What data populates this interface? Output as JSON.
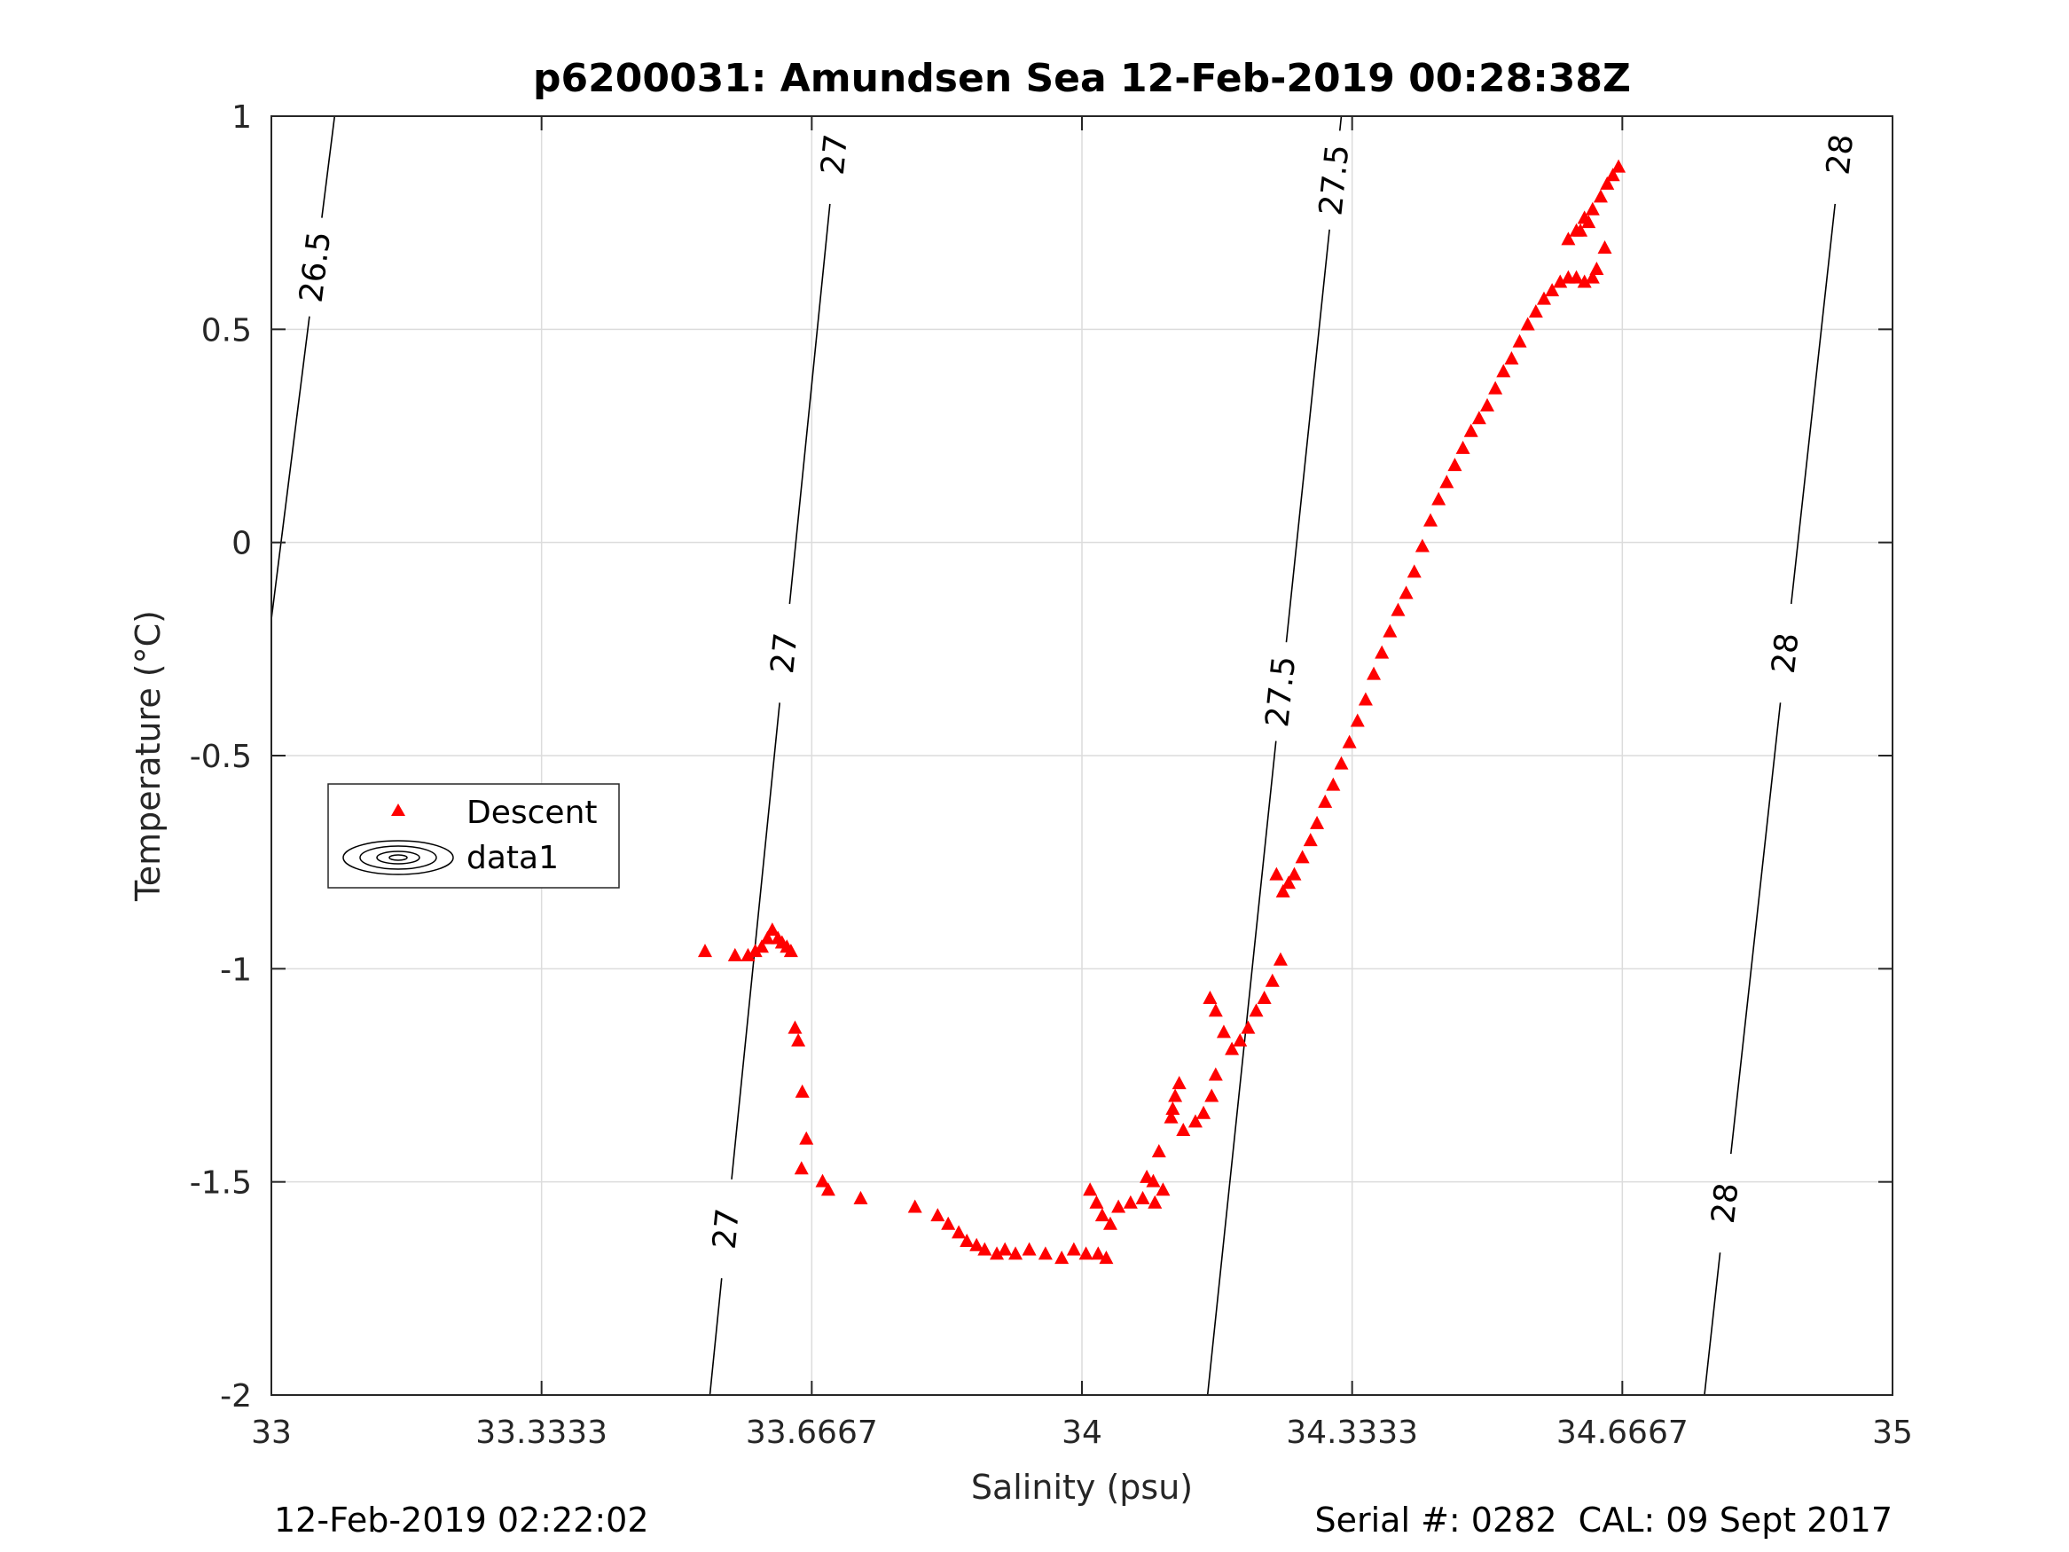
{
  "chart_data": {
    "type": "scatter",
    "title": "p6200031: Amundsen Sea 12-Feb-2019 00:28:38Z",
    "xlabel": "Salinity (psu)",
    "ylabel": "Temperature (°C)",
    "xlim": [
      33,
      35
    ],
    "ylim": [
      -2,
      1
    ],
    "xticks": [
      "33",
      "33.3333",
      "33.6667",
      "34",
      "34.3333",
      "34.6667",
      "35"
    ],
    "yticks": [
      "1",
      "0.5",
      "0",
      "-0.5",
      "-1",
      "-1.5",
      "-2"
    ],
    "grid": true,
    "legend_position": "center-left",
    "legend": [
      "Descent",
      "data1"
    ],
    "marker_color": "#ff0000",
    "series": [
      {
        "name": "Descent",
        "marker": "triangle",
        "x": [
          33.535,
          33.572,
          33.588,
          33.597,
          33.605,
          33.612,
          33.618,
          33.625,
          33.63,
          33.636,
          33.641,
          33.646,
          33.65,
          33.655,
          33.66,
          33.654,
          33.68,
          33.687,
          33.727,
          33.794,
          33.822,
          33.835,
          33.848,
          33.858,
          33.87,
          33.88,
          33.895,
          33.905,
          33.918,
          33.935,
          33.955,
          33.975,
          33.99,
          34.005,
          34.02,
          34.03,
          34.01,
          34.018,
          34.025,
          34.035,
          34.045,
          34.06,
          34.075,
          34.09,
          34.1,
          34.08,
          34.088,
          34.095,
          34.11,
          34.115,
          34.12,
          34.112,
          34.125,
          34.14,
          34.15,
          34.16,
          34.165,
          34.158,
          34.165,
          34.175,
          34.185,
          34.195,
          34.205,
          34.215,
          34.225,
          34.235,
          34.245,
          34.24,
          34.248,
          34.255,
          34.262,
          34.272,
          34.282,
          34.29,
          34.3,
          34.31,
          34.32,
          34.33,
          34.34,
          34.35,
          34.36,
          34.37,
          34.38,
          34.39,
          34.4,
          34.41,
          34.42,
          34.43,
          34.44,
          34.45,
          34.46,
          34.47,
          34.48,
          34.49,
          34.5,
          34.51,
          34.52,
          34.53,
          34.54,
          34.55,
          34.56,
          34.57,
          34.58,
          34.59,
          34.6,
          34.61,
          34.62,
          34.63,
          34.635,
          34.645,
          34.6,
          34.615,
          34.625,
          34.61,
          34.62,
          34.63,
          34.64,
          34.648,
          34.655,
          34.662
        ],
        "y": [
          -0.96,
          -0.97,
          -0.97,
          -0.96,
          -0.95,
          -0.93,
          -0.91,
          -0.93,
          -0.94,
          -0.95,
          -0.96,
          -1.14,
          -1.17,
          -1.29,
          -1.4,
          -1.47,
          -1.5,
          -1.52,
          -1.54,
          -1.56,
          -1.58,
          -1.6,
          -1.62,
          -1.64,
          -1.65,
          -1.66,
          -1.67,
          -1.66,
          -1.67,
          -1.66,
          -1.67,
          -1.68,
          -1.66,
          -1.67,
          -1.67,
          -1.68,
          -1.52,
          -1.55,
          -1.58,
          -1.6,
          -1.56,
          -1.55,
          -1.54,
          -1.55,
          -1.52,
          -1.49,
          -1.5,
          -1.43,
          -1.35,
          -1.3,
          -1.27,
          -1.33,
          -1.38,
          -1.36,
          -1.34,
          -1.3,
          -1.25,
          -1.07,
          -1.1,
          -1.15,
          -1.19,
          -1.17,
          -1.14,
          -1.1,
          -1.07,
          -1.03,
          -0.98,
          -0.78,
          -0.82,
          -0.8,
          -0.78,
          -0.74,
          -0.7,
          -0.66,
          -0.61,
          -0.57,
          -0.52,
          -0.47,
          -0.42,
          -0.37,
          -0.31,
          -0.26,
          -0.21,
          -0.16,
          -0.12,
          -0.07,
          -0.01,
          0.05,
          0.1,
          0.14,
          0.18,
          0.22,
          0.26,
          0.29,
          0.32,
          0.36,
          0.4,
          0.43,
          0.47,
          0.51,
          0.54,
          0.57,
          0.59,
          0.61,
          0.62,
          0.62,
          0.61,
          0.62,
          0.64,
          0.69,
          0.71,
          0.73,
          0.75,
          0.73,
          0.76,
          0.78,
          0.81,
          0.84,
          0.86,
          0.88
        ]
      },
      {
        "name": "data1",
        "type": "contour",
        "levels": [
          26.5,
          27,
          27.5,
          28
        ],
        "contour_labels": [
          "26.5",
          "27",
          "27",
          "27",
          "27.5",
          "27.5",
          "28",
          "28",
          "28"
        ],
        "contour_lines": [
          {
            "level": 26.5,
            "x": [
              33.0,
              33.078
            ],
            "y": [
              -0.18,
              1.0
            ]
          },
          {
            "level": 27,
            "x": [
              33.541,
              33.7
            ],
            "y": [
              -2.0,
              1.0
            ]
          },
          {
            "level": 27.5,
            "x": [
              34.155,
              34.32
            ],
            "y": [
              -2.0,
              1.0
            ]
          },
          {
            "level": 28,
            "x": [
              34.768,
              34.941
            ],
            "y": [
              -2.0,
              1.0
            ]
          }
        ]
      }
    ]
  },
  "footer": {
    "left": "12-Feb-2019 02:22:02",
    "right": "Serial #: 0282  CAL: 09 Sept 2017"
  }
}
